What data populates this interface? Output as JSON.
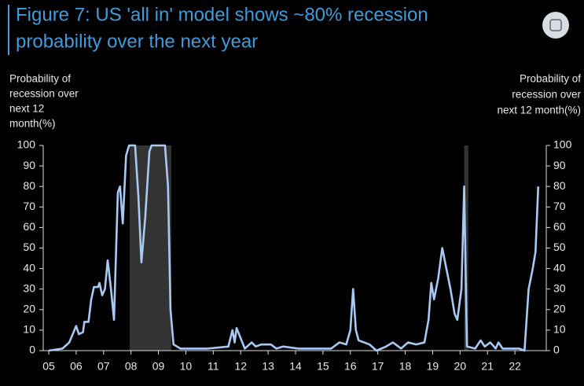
{
  "chart_data": {
    "type": "line",
    "title": [
      "Figure 7: US 'all in' model shows ~80% recession",
      "probability over the next year"
    ],
    "ylabel": [
      "Probability of",
      "recession over",
      "next 12",
      "month(%)"
    ],
    "y2label": [
      "Probability of",
      "recession over",
      "next 12 month(%)"
    ],
    "xlim": [
      2005,
      2023
    ],
    "xticks": [
      {
        "value": 2005,
        "label": "05"
      },
      {
        "value": 2006,
        "label": "06"
      },
      {
        "value": 2007,
        "label": "07"
      },
      {
        "value": 2008,
        "label": "08"
      },
      {
        "value": 2009,
        "label": "09"
      },
      {
        "value": 2010,
        "label": "10"
      },
      {
        "value": 2011,
        "label": "11"
      },
      {
        "value": 2012,
        "label": "12"
      },
      {
        "value": 2013,
        "label": "13"
      },
      {
        "value": 2014,
        "label": "14"
      },
      {
        "value": 2015,
        "label": "15"
      },
      {
        "value": 2016,
        "label": "16"
      },
      {
        "value": 2017,
        "label": "17"
      },
      {
        "value": 2018,
        "label": "18"
      },
      {
        "value": 2019,
        "label": "19"
      },
      {
        "value": 2020,
        "label": "20"
      },
      {
        "value": 2021,
        "label": "21"
      },
      {
        "value": 2022,
        "label": "22"
      }
    ],
    "ylim": [
      0,
      100
    ],
    "yticks": [
      0,
      10,
      20,
      30,
      40,
      50,
      60,
      70,
      80,
      90,
      100
    ],
    "y2lim": [
      0,
      100
    ],
    "y2ticks": [
      0,
      10,
      20,
      30,
      40,
      50,
      60,
      70,
      80,
      90,
      100
    ],
    "shaded_regions": [
      [
        2007.95,
        2009.47
      ],
      [
        2020.15,
        2020.3
      ]
    ],
    "shade_color": "#333333",
    "x": [
      2005.0,
      2005.5,
      2005.75,
      2006.0,
      2006.1,
      2006.25,
      2006.3,
      2006.45,
      2006.55,
      2006.65,
      2006.8,
      2006.85,
      2006.95,
      2007.05,
      2007.15,
      2007.27,
      2007.38,
      2007.52,
      2007.6,
      2007.7,
      2007.82,
      2007.93,
      2008.15,
      2008.27,
      2008.38,
      2008.52,
      2008.67,
      2008.75,
      2009.24,
      2009.35,
      2009.44,
      2009.55,
      2009.8,
      2010.8,
      2011.55,
      2011.7,
      2011.78,
      2011.85,
      2012.0,
      2012.15,
      2012.4,
      2012.55,
      2012.75,
      2013.1,
      2013.3,
      2013.55,
      2014.1,
      2015.3,
      2015.6,
      2015.85,
      2016.0,
      2016.1,
      2016.2,
      2016.3,
      2016.7,
      2016.95,
      2017.3,
      2017.55,
      2017.85,
      2018.1,
      2018.4,
      2018.7,
      2018.85,
      2018.95,
      2019.05,
      2019.2,
      2019.35,
      2019.5,
      2019.65,
      2019.8,
      2019.9,
      2020.05,
      2020.15,
      2020.25,
      2020.55,
      2020.75,
      2020.9,
      2021.1,
      2021.3,
      2021.4,
      2021.55,
      2022.15,
      2022.35,
      2022.5,
      2022.65,
      2022.75,
      2022.85
    ],
    "series": [
      {
        "name": "Recession probability",
        "color": "#a9c8f2",
        "values": [
          0,
          1,
          4,
          12,
          8,
          9,
          14,
          14,
          25,
          31,
          31,
          33,
          27,
          30,
          44,
          30,
          15,
          77,
          80,
          62,
          95,
          100,
          100,
          75,
          43,
          65,
          97,
          100,
          100,
          80,
          20,
          3,
          1,
          1,
          2,
          10,
          4,
          11,
          6,
          1,
          4,
          2,
          3,
          3,
          1,
          2,
          1,
          1,
          4,
          3,
          10,
          30,
          10,
          5,
          3,
          0,
          2,
          4,
          1,
          4,
          3,
          4,
          15,
          33,
          25,
          35,
          50,
          40,
          30,
          18,
          15,
          30,
          80,
          2,
          1,
          5,
          2,
          4,
          1,
          4,
          1,
          1,
          0,
          30,
          40,
          48,
          80
        ]
      }
    ]
  }
}
